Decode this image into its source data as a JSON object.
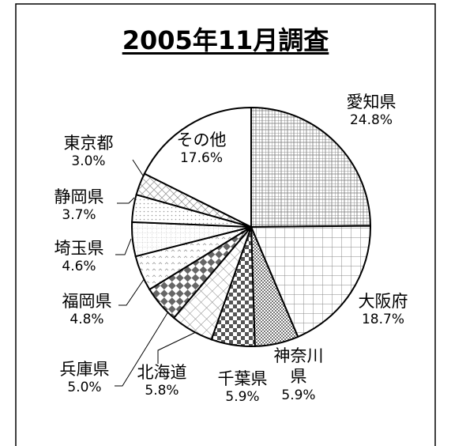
{
  "chart_data": {
    "type": "pie",
    "title": "2005年11月調査",
    "categories": [
      "愛知県",
      "大阪府",
      "神奈川県",
      "千葉県",
      "北海道",
      "兵庫県",
      "福岡県",
      "埼玉県",
      "静岡県",
      "東京都",
      "その他"
    ],
    "values": [
      24.8,
      18.7,
      5.9,
      5.9,
      5.8,
      5.0,
      4.8,
      4.6,
      3.7,
      3.0,
      17.6
    ],
    "value_labels": [
      "24.8%",
      "18.7%",
      "5.9%",
      "5.9%",
      "5.8%",
      "5.0%",
      "4.8%",
      "4.6%",
      "3.7%",
      "3.0%",
      "17.6%"
    ]
  }
}
